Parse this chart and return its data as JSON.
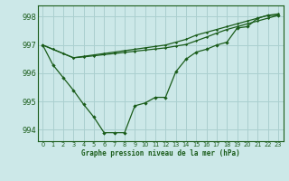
{
  "title": "Graphe pression niveau de la mer (hPa)",
  "background_color": "#cce8e8",
  "grid_color": "#aacfcf",
  "line_color": "#1a5c1a",
  "ylim": [
    993.6,
    998.4
  ],
  "xlim": [
    -0.5,
    23.5
  ],
  "yticks": [
    994,
    995,
    996,
    997,
    998
  ],
  "xticks": [
    0,
    1,
    2,
    3,
    4,
    5,
    6,
    7,
    8,
    9,
    10,
    11,
    12,
    13,
    14,
    15,
    16,
    17,
    18,
    19,
    20,
    21,
    22,
    23
  ],
  "series1": [
    997.0,
    996.3,
    995.85,
    995.4,
    994.9,
    994.45,
    993.9,
    993.9,
    993.9,
    994.85,
    994.95,
    995.15,
    995.15,
    996.05,
    996.5,
    996.75,
    996.85,
    997.0,
    997.1,
    997.6,
    997.65,
    997.95,
    998.05,
    998.05
  ],
  "series2": [
    997.0,
    996.85,
    996.7,
    996.55,
    996.6,
    996.65,
    996.7,
    996.75,
    996.8,
    996.85,
    996.9,
    996.95,
    997.0,
    997.1,
    997.2,
    997.35,
    997.45,
    997.55,
    997.65,
    997.75,
    997.85,
    997.95,
    998.05,
    998.1
  ],
  "series3": [
    997.0,
    996.85,
    996.7,
    996.55,
    996.58,
    996.62,
    996.66,
    996.7,
    996.74,
    996.78,
    996.82,
    996.86,
    996.9,
    996.96,
    997.02,
    997.15,
    997.28,
    997.42,
    997.55,
    997.65,
    997.75,
    997.85,
    997.95,
    998.05
  ],
  "ylabel_fontsize": 6.0,
  "xlabel_fontsize": 5.5,
  "xtick_fontsize": 4.8,
  "ytick_fontsize": 6.0
}
